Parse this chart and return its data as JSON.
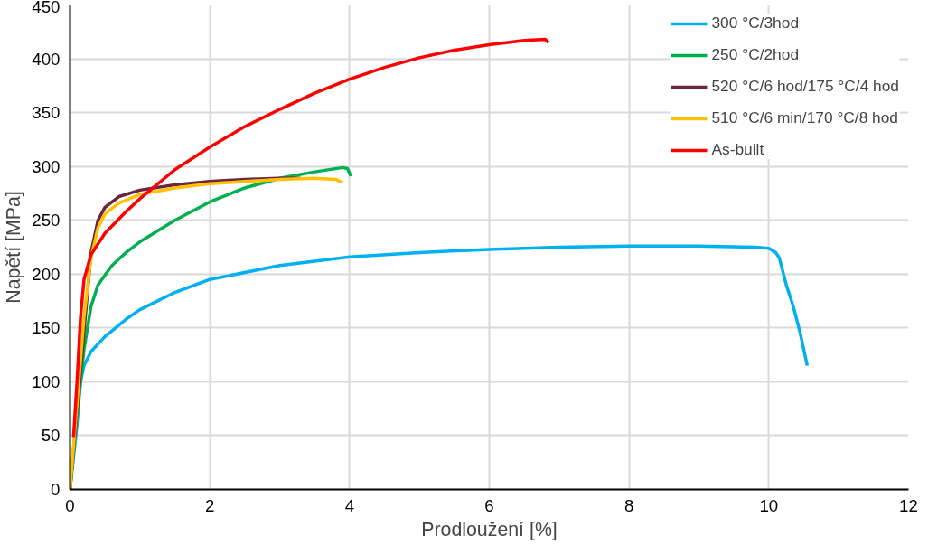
{
  "chart_data": {
    "type": "line",
    "xlabel": "Prodloužení [%]",
    "ylabel": "Napětí [MPa]",
    "xlim": [
      0,
      12
    ],
    "ylim": [
      0,
      450
    ],
    "xticks": [
      0,
      2,
      4,
      6,
      8,
      10,
      12
    ],
    "yticks": [
      0,
      50,
      100,
      150,
      200,
      250,
      300,
      350,
      400,
      450
    ],
    "grid": true,
    "legend": "top right",
    "series": [
      {
        "name": "300 °C/3hod",
        "color": "#00b0f0",
        "x": [
          0,
          0.1,
          0.15,
          0.2,
          0.3,
          0.5,
          0.8,
          1,
          1.5,
          2,
          3,
          4,
          5,
          6,
          7,
          8,
          9,
          9.8,
          10,
          10.1,
          10.15,
          10.25,
          10.35,
          10.45,
          10.55
        ],
        "values": [
          0,
          60,
          100,
          115,
          128,
          142,
          158,
          167,
          183,
          195,
          208,
          216,
          220,
          223,
          225,
          226,
          226,
          225,
          224,
          220,
          215,
          190,
          170,
          145,
          115
        ]
      },
      {
        "name": "250 °C/2hod",
        "color": "#00b050",
        "x": [
          0,
          0.1,
          0.2,
          0.3,
          0.4,
          0.6,
          0.8,
          1,
          1.5,
          2,
          2.5,
          3,
          3.5,
          3.9,
          3.97,
          4.02
        ],
        "values": [
          0,
          70,
          130,
          170,
          190,
          208,
          220,
          230,
          250,
          267,
          280,
          289,
          295,
          299,
          298,
          291
        ]
      },
      {
        "name": "520 °C/6 hod/175 °C/4 hod",
        "color": "#6b2540",
        "x": [
          0,
          0.3,
          0.4,
          0.5,
          0.7,
          1,
          1.5,
          2,
          2.5,
          3,
          3.3
        ],
        "values": [
          0,
          220,
          250,
          262,
          272,
          278,
          283,
          286,
          288,
          289,
          289
        ]
      },
      {
        "name": "510 °C/6 min/170 °C/8 hod",
        "color": "#ffc000",
        "x": [
          0,
          0.1,
          0.2,
          0.3,
          0.4,
          0.5,
          0.7,
          1,
          1.5,
          2,
          2.5,
          3,
          3.5,
          3.8,
          3.9
        ],
        "values": [
          0,
          80,
          160,
          215,
          243,
          256,
          266,
          274,
          280,
          284,
          286,
          288,
          289,
          288,
          285
        ]
      },
      {
        "name": "As-built",
        "color": "#ff0000",
        "x": [
          0.05,
          0.1,
          0.15,
          0.2,
          0.3,
          0.5,
          0.8,
          1,
          1.5,
          2,
          2.5,
          3,
          3.5,
          4,
          4.5,
          5,
          5.5,
          6,
          6.5,
          6.8,
          6.85
        ],
        "values": [
          48,
          100,
          160,
          195,
          218,
          238,
          258,
          270,
          297,
          318,
          337,
          353,
          368,
          381,
          392,
          401,
          408,
          413,
          417,
          418,
          415
        ]
      }
    ]
  }
}
